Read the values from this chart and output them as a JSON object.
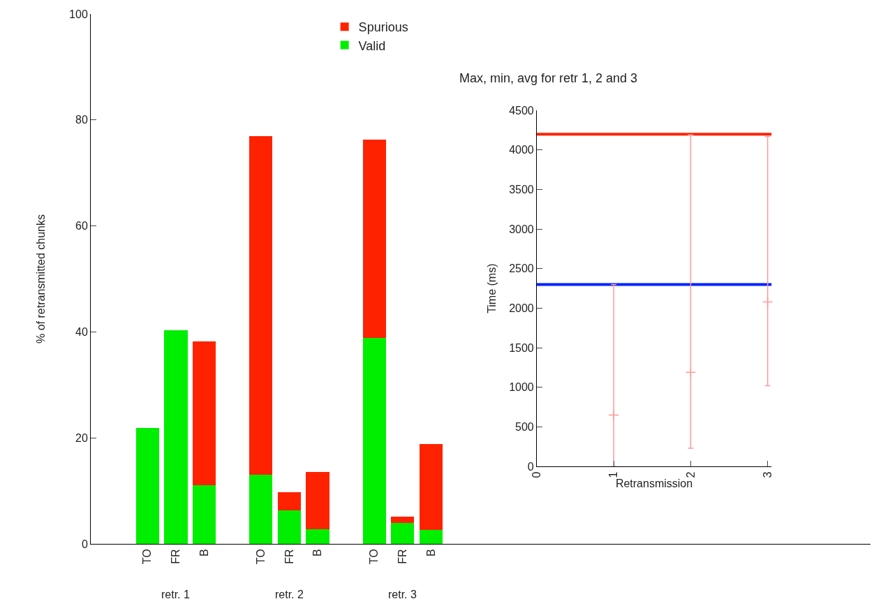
{
  "chart_data": [
    {
      "type": "bar",
      "stacked": true,
      "ylabel": "% of retransmitted chunks",
      "categories": [
        "TO",
        "FR",
        "B",
        "TO",
        "FR",
        "B",
        "TO",
        "FR",
        "B"
      ],
      "series": [
        {
          "name": "Valid",
          "color": "#00ee00",
          "values": [
            21.9,
            40.3,
            11.1,
            13.0,
            6.3,
            2.8,
            38.9,
            3.9,
            2.7
          ]
        },
        {
          "name": "Spurious",
          "color": "#ff2200",
          "values": [
            null,
            null,
            27.1,
            63.9,
            3.5,
            10.8,
            37.4,
            1.3,
            16.2
          ]
        }
      ],
      "ylim": [
        0,
        100
      ],
      "yticks": [
        0,
        20,
        40,
        60,
        80,
        100
      ],
      "grid": false,
      "legend": "top",
      "annotations": [
        "retr. 1",
        "retr. 2",
        "retr. 3"
      ]
    },
    {
      "type": "scatter",
      "title": "Max, min, avg for retr 1, 2 and 3",
      "xlabel": "Retransmission",
      "ylabel": "Time (ms)",
      "x": [
        1,
        2,
        3
      ],
      "series": [
        {
          "color": "#ff9999",
          "marker": "cross",
          "values": [
            650,
            1190,
            2080
          ],
          "errors": [
            [
              0,
              2300
            ],
            [
              230,
              4190
            ],
            [
              1020,
              4170
            ]
          ]
        }
      ],
      "xlim": [
        0,
        3.05
      ],
      "xticks": [
        0,
        1,
        2,
        3
      ],
      "ylim": [
        0,
        4500
      ],
      "yticks": [
        0,
        500,
        1000,
        1500,
        2000,
        2500,
        3000,
        3500,
        4000,
        4500
      ],
      "ref_lines": [
        {
          "axis": "y",
          "value": 4200,
          "color": "#ff2200"
        },
        {
          "axis": "y",
          "value": 2300,
          "color": "#0022ff"
        }
      ],
      "grid": false,
      "legend": false
    }
  ]
}
